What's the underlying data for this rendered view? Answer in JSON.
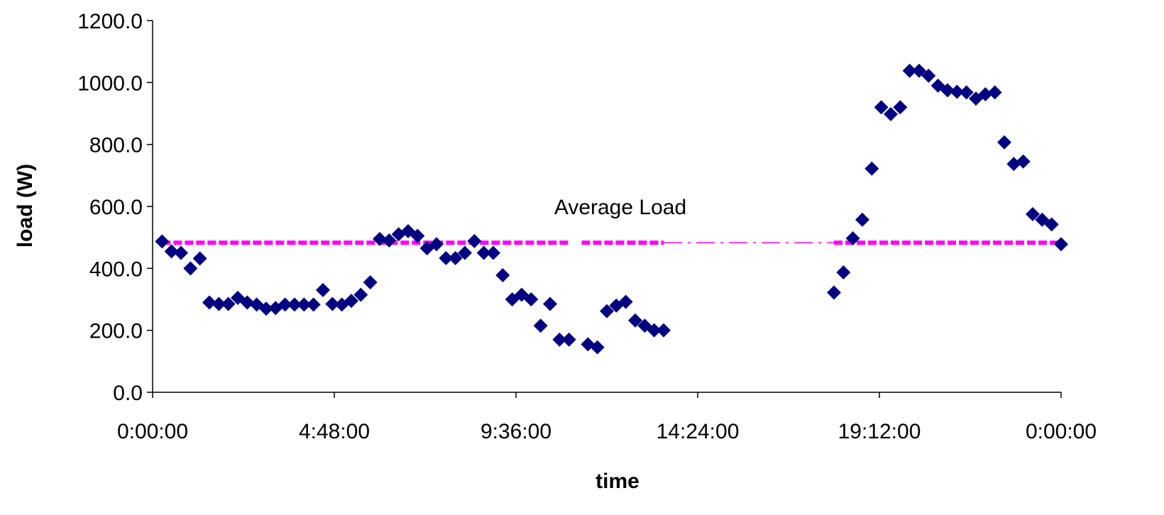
{
  "chart_data": {
    "type": "scatter",
    "title": "",
    "xlabel": "time",
    "ylabel": "load (W)",
    "xlim": [
      "0:00:00",
      "24:00:00"
    ],
    "ylim": [
      0,
      1200
    ],
    "grid": false,
    "legend": "none",
    "colors": {
      "points": "#000080",
      "average": "#ff00ff"
    },
    "x_ticks": [
      "0:00:00",
      "4:48:00",
      "9:36:00",
      "14:24:00",
      "19:12:00",
      "0:00:00"
    ],
    "y_ticks": [
      "0.0",
      "200.0",
      "400.0",
      "600.0",
      "800.0",
      "1000.0",
      "1200.0"
    ],
    "annotation": "Average Load",
    "average": {
      "value": 483,
      "solid_segments": [
        [
          "0:15:00",
          "11:00:00"
        ],
        [
          "11:20:00",
          "13:30:00"
        ],
        [
          "18:00:00",
          "24:00:00"
        ]
      ],
      "dashed_segments": [
        [
          "13:30:00",
          "18:00:00"
        ]
      ]
    },
    "series": [
      {
        "points": [
          [
            "0:15:00",
            487
          ],
          [
            "0:30:00",
            455
          ],
          [
            "0:45:00",
            450
          ],
          [
            "1:00:00",
            400
          ],
          [
            "1:15:00",
            432
          ],
          [
            "1:30:00",
            290
          ],
          [
            "1:45:00",
            285
          ],
          [
            "2:00:00",
            285
          ],
          [
            "2:15:00",
            305
          ],
          [
            "2:30:00",
            290
          ],
          [
            "2:45:00",
            283
          ],
          [
            "3:00:00",
            270
          ],
          [
            "3:15:00",
            272
          ],
          [
            "3:30:00",
            283
          ],
          [
            "3:45:00",
            283
          ],
          [
            "4:00:00",
            283
          ],
          [
            "4:15:00",
            283
          ],
          [
            "4:30:00",
            330
          ],
          [
            "4:45:00",
            285
          ],
          [
            "5:00:00",
            283
          ],
          [
            "5:15:00",
            295
          ],
          [
            "5:30:00",
            315
          ],
          [
            "5:45:00",
            355
          ],
          [
            "6:00:00",
            495
          ],
          [
            "6:15:00",
            490
          ],
          [
            "6:30:00",
            510
          ],
          [
            "6:45:00",
            520
          ],
          [
            "7:00:00",
            505
          ],
          [
            "7:15:00",
            465
          ],
          [
            "7:30:00",
            478
          ],
          [
            "7:45:00",
            433
          ],
          [
            "8:00:00",
            433
          ],
          [
            "8:15:00",
            450
          ],
          [
            "8:30:00",
            488
          ],
          [
            "8:45:00",
            450
          ],
          [
            "9:00:00",
            450
          ],
          [
            "9:15:00",
            378
          ],
          [
            "9:30:00",
            300
          ],
          [
            "9:45:00",
            315
          ],
          [
            "10:00:00",
            300
          ],
          [
            "10:15:00",
            215
          ],
          [
            "10:30:00",
            285
          ],
          [
            "10:45:00",
            170
          ],
          [
            "11:00:00",
            170
          ],
          [
            "11:30:00",
            155
          ],
          [
            "11:45:00",
            145
          ],
          [
            "12:00:00",
            262
          ],
          [
            "12:15:00",
            280
          ],
          [
            "12:30:00",
            292
          ],
          [
            "12:45:00",
            232
          ],
          [
            "13:00:00",
            215
          ],
          [
            "13:15:00",
            200
          ],
          [
            "13:30:00",
            200
          ],
          [
            "18:00:00",
            322
          ],
          [
            "18:15:00",
            387
          ],
          [
            "18:30:00",
            497
          ],
          [
            "18:45:00",
            557
          ],
          [
            "19:00:00",
            722
          ],
          [
            "19:15:00",
            920
          ],
          [
            "19:30:00",
            898
          ],
          [
            "19:45:00",
            920
          ],
          [
            "20:00:00",
            1038
          ],
          [
            "20:15:00",
            1038
          ],
          [
            "20:30:00",
            1022
          ],
          [
            "20:45:00",
            990
          ],
          [
            "21:00:00",
            975
          ],
          [
            "21:15:00",
            970
          ],
          [
            "21:30:00",
            968
          ],
          [
            "21:45:00",
            948
          ],
          [
            "22:00:00",
            962
          ],
          [
            "22:15:00",
            968
          ],
          [
            "22:30:00",
            807
          ],
          [
            "22:45:00",
            737
          ],
          [
            "23:00:00",
            745
          ],
          [
            "23:15:00",
            575
          ],
          [
            "23:30:00",
            557
          ],
          [
            "23:45:00",
            542
          ],
          [
            "24:00:00",
            478
          ]
        ]
      }
    ]
  }
}
